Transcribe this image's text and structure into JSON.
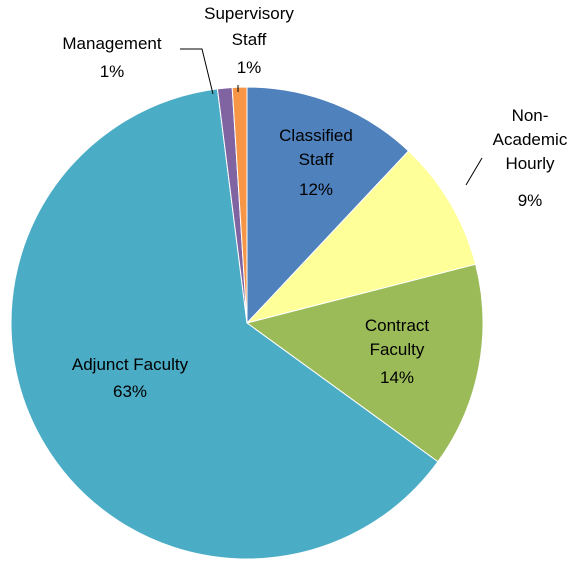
{
  "chart_data": {
    "type": "pie",
    "categories": [
      "Classified\nStaff",
      "Non-\nAcademic\nHourly",
      "Contract\nFaculty",
      "Adjunct Faculty",
      "Management",
      "Supervisory\nStaff"
    ],
    "values": [
      12,
      9,
      14,
      63,
      1,
      1
    ],
    "value_labels": [
      "12%",
      "9%",
      "14%",
      "63%",
      "1%",
      "1%"
    ],
    "colors": [
      "#4f81bd",
      "#ffff99",
      "#9bbb59",
      "#4bacc6",
      "#8064a2",
      "#f79646"
    ]
  }
}
